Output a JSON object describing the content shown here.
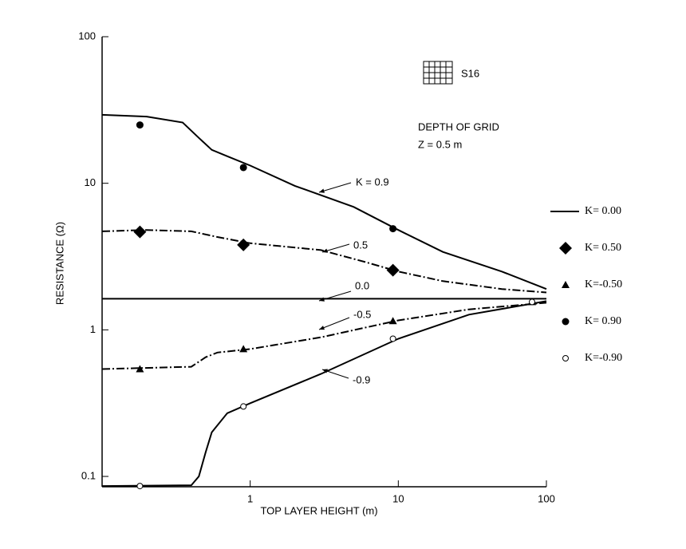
{
  "chart_data": {
    "type": "line",
    "xlabel": "TOP LAYER HEIGHT (m)",
    "ylabel": "RESISTANCE (Ω)",
    "xscale": "log",
    "yscale": "log",
    "xlim": [
      0.1,
      100
    ],
    "ylim": [
      0.085,
      100
    ],
    "xticks": [
      1,
      10,
      100
    ],
    "yticks": [
      0.1,
      1,
      10,
      100
    ],
    "grid": false,
    "legend": "right",
    "icon_label": "S16",
    "notes": [
      "DEPTH OF GRID",
      "Z = 0.5 m"
    ],
    "series": [
      {
        "x": [
          0.1,
          0.2,
          0.35,
          0.45,
          0.55,
          0.7,
          1,
          2,
          5,
          10,
          20,
          50,
          100
        ],
        "values": [
          29.3,
          28.5,
          26,
          20.4,
          16.9,
          15.3,
          13.2,
          9.6,
          6.9,
          4.8,
          3.4,
          2.5,
          1.9
        ],
        "color": "#000000",
        "style": "solid"
      },
      {
        "x": [
          0.1,
          0.2,
          0.4,
          0.6,
          1,
          3,
          6,
          10,
          20,
          50,
          100
        ],
        "values": [
          4.7,
          4.8,
          4.7,
          4.3,
          3.9,
          3.5,
          2.9,
          2.5,
          2.15,
          1.9,
          1.8
        ],
        "color": "#000000",
        "style": "dashdot"
      },
      {
        "name": "K= 0.00",
        "x": [
          0.1,
          100
        ],
        "values": [
          1.63,
          1.63
        ],
        "color": "#000000",
        "style": "solid"
      },
      {
        "x": [
          0.1,
          0.4,
          0.5,
          0.6,
          1,
          3,
          10,
          30,
          100
        ],
        "values": [
          0.54,
          0.56,
          0.65,
          0.7,
          0.74,
          0.89,
          1.16,
          1.38,
          1.53
        ],
        "color": "#000000",
        "style": "dashdot"
      },
      {
        "x": [
          0.1,
          0.4,
          0.45,
          0.5,
          0.55,
          0.7,
          1,
          3,
          10,
          30,
          100
        ],
        "values": [
          0.086,
          0.087,
          0.1,
          0.146,
          0.2,
          0.27,
          0.316,
          0.5,
          0.87,
          1.27,
          1.57
        ],
        "color": "#000000",
        "style": "solid"
      },
      {
        "name": "K= 0.50",
        "marker": "diamond",
        "x": [
          0.18,
          0.9,
          9.2
        ],
        "values": [
          4.66,
          3.8,
          2.55
        ],
        "color": "#000000"
      },
      {
        "name": "K=-0.50",
        "marker": "triangle",
        "x": [
          0.18,
          0.9,
          9.2,
          80
        ],
        "values": [
          0.54,
          0.74,
          1.15,
          1.55
        ],
        "color": "#000000"
      },
      {
        "name": "K= 0.90",
        "marker": "circle",
        "x": [
          0.18,
          0.9,
          9.2
        ],
        "values": [
          25,
          12.8,
          4.9
        ],
        "color": "#000000"
      },
      {
        "name": "K=-0.90",
        "marker": "open-circle",
        "x": [
          0.18,
          0.9,
          9.2,
          80
        ],
        "values": [
          0.086,
          0.3,
          0.87,
          1.55
        ],
        "color": "#000000"
      }
    ],
    "annotations": [
      "K = 0.9",
      "0.5",
      "0.0",
      "-0.5",
      "-0.9"
    ]
  }
}
